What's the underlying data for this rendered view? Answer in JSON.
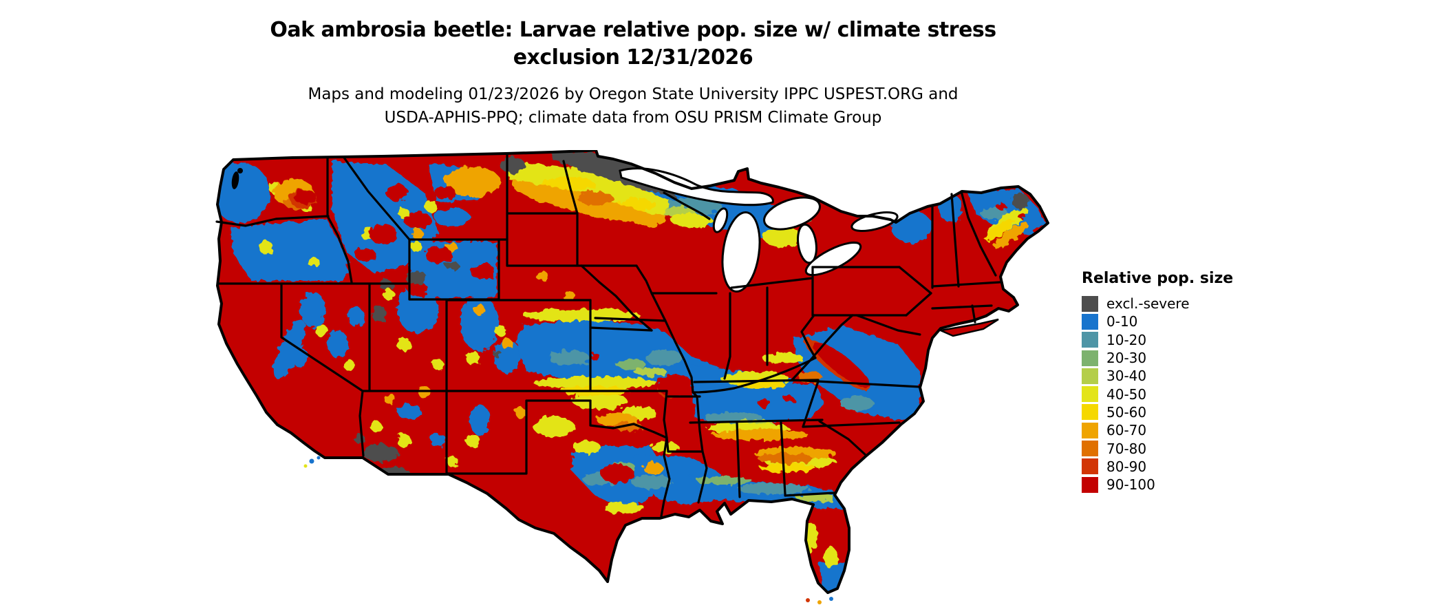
{
  "title": {
    "line1": "Oak ambrosia beetle: Larvae relative pop. size w/ climate stress",
    "line2": "exclusion 12/31/2026"
  },
  "subtitle": {
    "line1": "Maps and modeling 01/23/2026 by Oregon State University IPPC USPEST.ORG and",
    "line2": "USDA-APHIS-PPQ; climate data from OSU PRISM Climate Group"
  },
  "legend": {
    "title": "Relative pop. size",
    "items": [
      {
        "label": "excl.-severe",
        "color": "#4D4D4D"
      },
      {
        "label": "0-10",
        "color": "#1874CD"
      },
      {
        "label": "10-20",
        "color": "#4E95A6"
      },
      {
        "label": "20-30",
        "color": "#7DB26E"
      },
      {
        "label": "30-40",
        "color": "#B4CE4A"
      },
      {
        "label": "40-50",
        "color": "#E3E419"
      },
      {
        "label": "50-60",
        "color": "#F5D800"
      },
      {
        "label": "60-70",
        "color": "#EFA400"
      },
      {
        "label": "70-80",
        "color": "#E07000"
      },
      {
        "label": "80-90",
        "color": "#D23505"
      },
      {
        "label": "90-100",
        "color": "#C30000"
      }
    ]
  },
  "map": {
    "outline_color": "#000000",
    "water_color": "#FFFFFF"
  }
}
